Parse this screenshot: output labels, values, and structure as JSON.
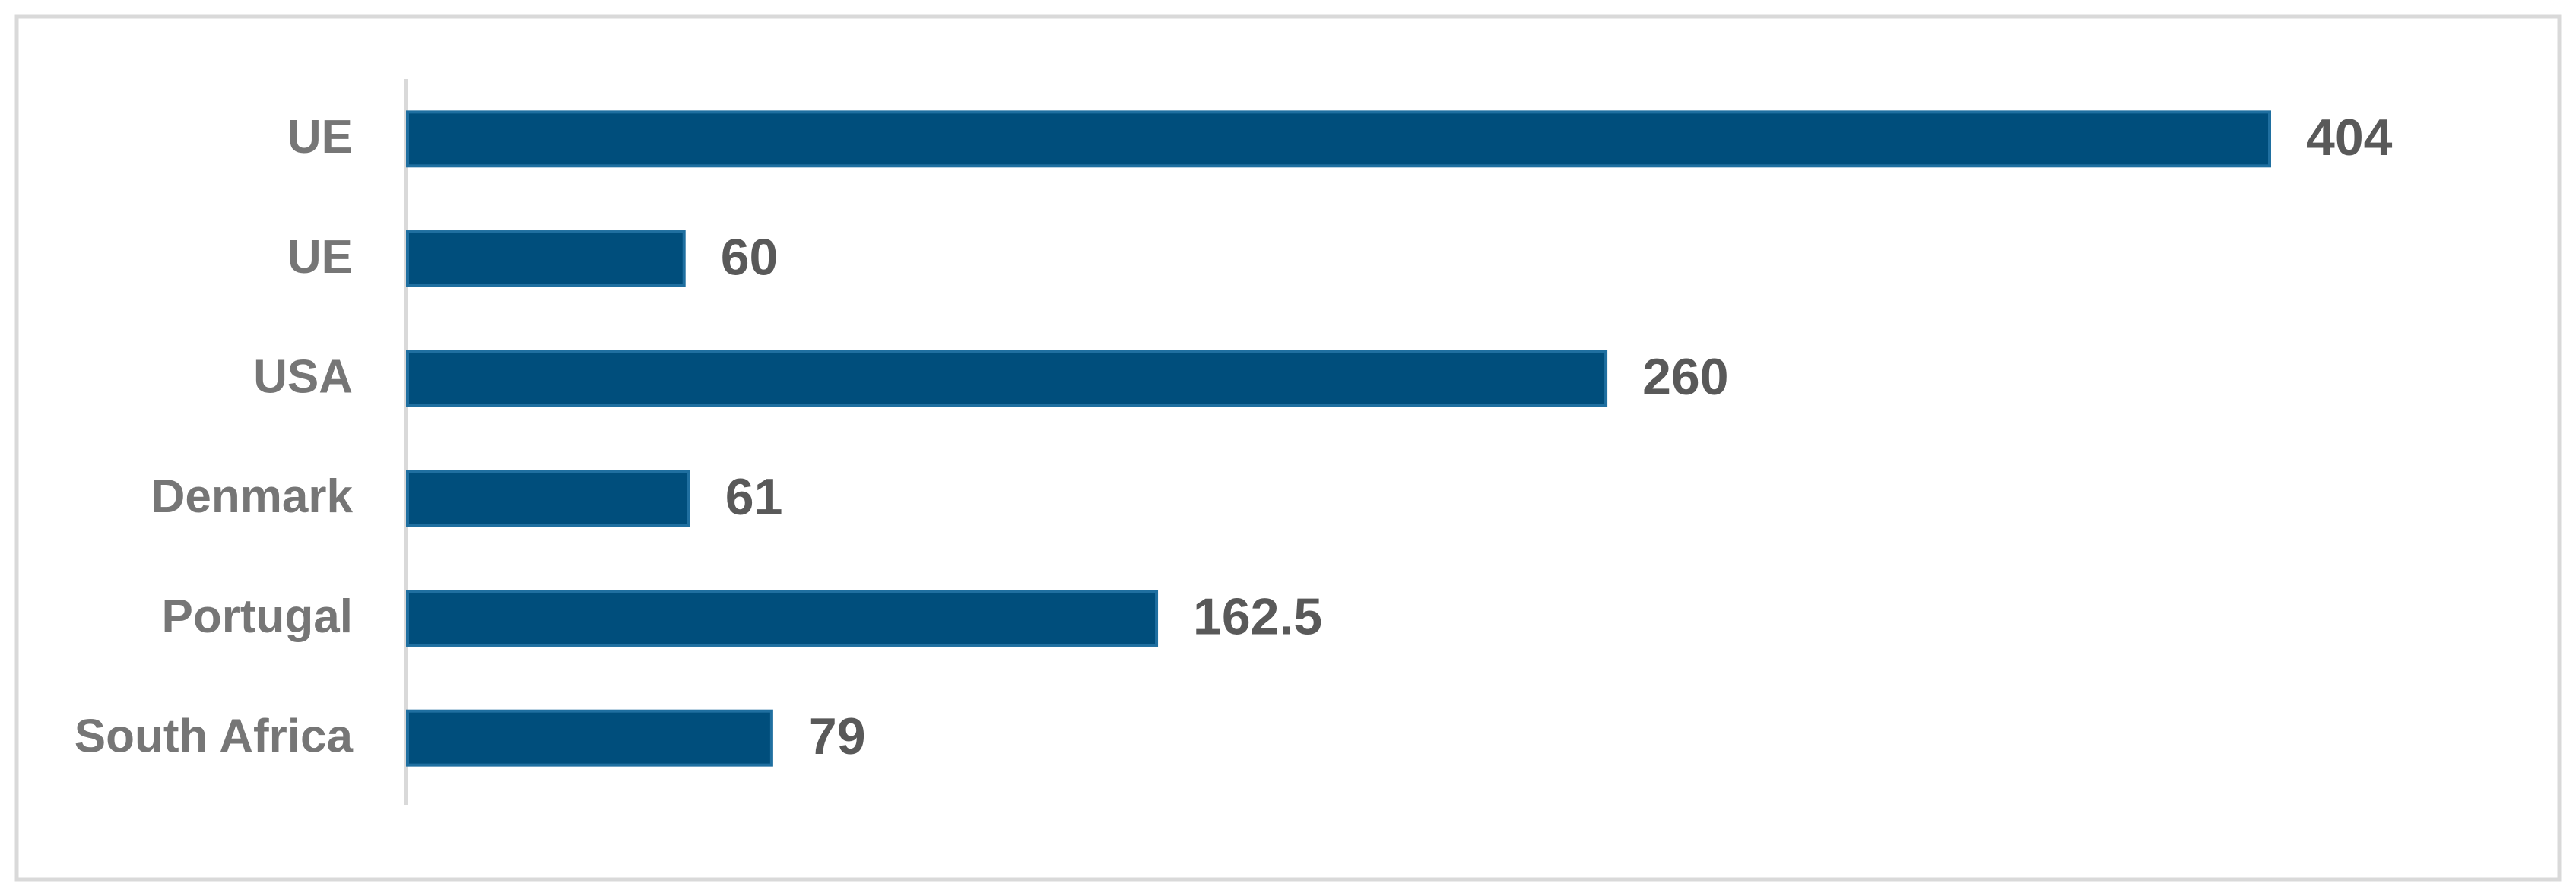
{
  "chart_data": {
    "type": "bar",
    "orientation": "horizontal",
    "categories": [
      "UE",
      "UE",
      "USA",
      "Denmark",
      "Portugal",
      "South Africa"
    ],
    "values": [
      404,
      60,
      260,
      61,
      162.5,
      79
    ],
    "color": "#004e7c"
  }
}
